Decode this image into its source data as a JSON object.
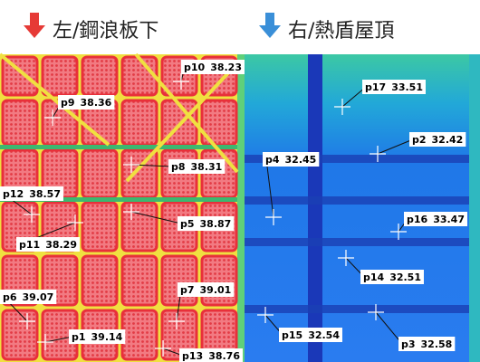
{
  "header": {
    "left": "左/鋼浪板下",
    "right": "右/熱盾屋頂"
  },
  "points": [
    {
      "label": "p10",
      "value": 38.23
    },
    {
      "label": "p9",
      "value": 38.36
    },
    {
      "label": "p8",
      "value": 38.31
    },
    {
      "label": "p12",
      "value": 38.57
    },
    {
      "label": "p5",
      "value": 38.87
    },
    {
      "label": "p11",
      "value": 38.29
    },
    {
      "label": "p6",
      "value": 39.07
    },
    {
      "label": "p7",
      "value": 39.01
    },
    {
      "label": "p1",
      "value": 39.14
    },
    {
      "label": "p13",
      "value": 38.76
    },
    {
      "label": "p17",
      "value": 33.51
    },
    {
      "label": "p2",
      "value": 32.42
    },
    {
      "label": "p4",
      "value": 32.45
    },
    {
      "label": "p16",
      "value": 33.47
    },
    {
      "label": "p14",
      "value": 32.51
    },
    {
      "label": "p15",
      "value": 32.54
    },
    {
      "label": "p3",
      "value": 32.58
    }
  ]
}
